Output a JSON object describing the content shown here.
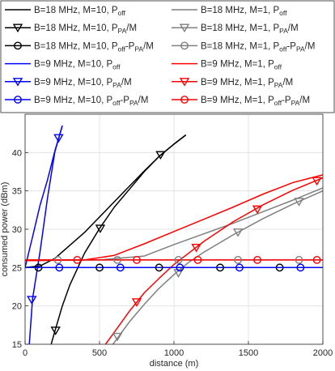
{
  "chart_data": {
    "type": "line",
    "xlabel": "distance (m)",
    "ylabel": "consumed power (dBm)",
    "xlim": [
      0,
      2000
    ],
    "ylim": [
      15,
      45
    ],
    "xticks": [
      0,
      500,
      1000,
      1500,
      2000
    ],
    "yticks": [
      15,
      20,
      25,
      30,
      35,
      40
    ],
    "grid": true,
    "legend_placement": "top, above plot (two columns)",
    "legend": [
      {
        "id": "s1",
        "main": "B=18 MHz, M=10, P",
        "sub": "off",
        "rest": ""
      },
      {
        "id": "s2",
        "main": "B=18 MHz, M=1, P",
        "sub": "off",
        "rest": ""
      },
      {
        "id": "s3",
        "main": "B=18 MHz, M=10, P",
        "sub": "PA",
        "rest": "/M"
      },
      {
        "id": "s4",
        "main": "B=18 MHz, M=1, P",
        "sub": "PA",
        "rest": "/M"
      },
      {
        "id": "s5",
        "main": "B=18 MHz, M=10, P",
        "sub": "off",
        "mid": "-P",
        "sub2": "PA",
        "rest": "/M"
      },
      {
        "id": "s6",
        "main": "B=18 MHz, M=1, P",
        "sub": "off",
        "mid": "-P",
        "sub2": "PA",
        "rest": "/M"
      },
      {
        "id": "s7",
        "main": "B=9 MHz, M=10, P",
        "sub": "off",
        "rest": ""
      },
      {
        "id": "s8",
        "main": "B=9 MHz, M=1, P",
        "sub": "off",
        "rest": ""
      },
      {
        "id": "s9",
        "main": "B=9 MHz, M=10, P",
        "sub": "PA",
        "rest": "/M"
      },
      {
        "id": "s10",
        "main": "B=9 MHz, M=1, P",
        "sub": "PA",
        "rest": "/M"
      },
      {
        "id": "s11",
        "main": "B=9 MHz, M=10, P",
        "sub": "off",
        "mid": "-P",
        "sub2": "PA",
        "rest": "/M"
      },
      {
        "id": "s12",
        "main": "B=9 MHz, M=1, P",
        "sub": "off",
        "mid": "-P",
        "sub2": "PA",
        "rest": "/M"
      }
    ],
    "series": [
      {
        "id": "s1",
        "color": "#000000",
        "marker": "none",
        "x": [
          0,
          100,
          200,
          300,
          400,
          500,
          600,
          700,
          800,
          900,
          1000,
          1080
        ],
        "y": [
          25.0,
          25.2,
          26.2,
          27.9,
          29.6,
          31.6,
          33.6,
          35.6,
          37.6,
          39.5,
          41.1,
          42.3
        ]
      },
      {
        "id": "s2",
        "color": "#7f7f7f",
        "marker": "none",
        "x": [
          0,
          500,
          800,
          1000,
          1200,
          1400,
          1600,
          1800,
          2000
        ],
        "y": [
          25.9,
          26.0,
          26.5,
          28.0,
          29.4,
          30.8,
          32.3,
          33.8,
          35.4
        ]
      },
      {
        "id": "s3",
        "color": "#000000",
        "marker": "triangle-down",
        "x": [
          175,
          200,
          250,
          300,
          400,
          500,
          600,
          700,
          800,
          900,
          1000,
          1080
        ],
        "y": [
          15.0,
          16.7,
          20.0,
          22.7,
          26.9,
          30.1,
          32.9,
          35.2,
          37.5,
          39.5,
          41.1,
          42.3
        ],
        "marker_x": [
          205,
          505,
          910
        ],
        "marker_y": [
          16.8,
          30.1,
          39.7
        ]
      },
      {
        "id": "s4",
        "color": "#7f7f7f",
        "marker": "triangle-down",
        "x": [
          590,
          700,
          800,
          900,
          1000,
          1100,
          1200,
          1400,
          1600,
          1800,
          2000
        ],
        "y": [
          15.0,
          17.9,
          20.2,
          22.3,
          24.1,
          25.7,
          27.0,
          29.3,
          31.4,
          33.3,
          35.0
        ],
        "marker_x": [
          620,
          1030,
          1430,
          1840
        ],
        "marker_y": [
          16.0,
          24.3,
          29.6,
          33.6
        ]
      },
      {
        "id": "s5",
        "color": "#000000",
        "marker": "circle",
        "x": [
          0,
          2000
        ],
        "y": [
          25.0,
          25.0
        ],
        "marker_x": [
          90,
          500,
          900,
          1310,
          1710
        ],
        "marker_y": [
          25.0,
          25.0,
          25.0,
          25.0,
          25.0
        ]
      },
      {
        "id": "s6",
        "color": "#7f7f7f",
        "marker": "circle",
        "x": [
          0,
          2000
        ],
        "y": [
          26.0,
          26.0
        ],
        "marker_x": [
          220,
          620,
          1030,
          1430,
          1840
        ],
        "marker_y": [
          26.0,
          26.0,
          26.0,
          26.0,
          26.0
        ]
      },
      {
        "id": "s7",
        "color": "#0000ff",
        "marker": "none",
        "x": [
          0,
          50,
          100,
          150,
          200,
          250
        ],
        "y": [
          25.0,
          29.0,
          33.1,
          36.4,
          40.2,
          43.5
        ]
      },
      {
        "id": "s8",
        "color": "#ff0000",
        "marker": "none",
        "x": [
          0,
          400,
          600,
          800,
          1000,
          1200,
          1400,
          1600,
          1800,
          2000
        ],
        "y": [
          25.9,
          26.0,
          26.6,
          28.1,
          29.7,
          31.3,
          32.9,
          34.6,
          36.1,
          37.1
        ]
      },
      {
        "id": "s9",
        "color": "#0000ff",
        "marker": "triangle-down",
        "x": [
          28,
          50,
          100,
          150,
          200,
          250
        ],
        "y": [
          15.0,
          20.9,
          27.0,
          34.0,
          40.1,
          43.5
        ],
        "marker_x": [
          45,
          225
        ],
        "marker_y": [
          20.8,
          41.9
        ]
      },
      {
        "id": "s10",
        "color": "#ff0000",
        "marker": "triangle-down",
        "x": [
          540,
          600,
          700,
          800,
          900,
          1000,
          1100,
          1200,
          1400,
          1600,
          1800,
          2000
        ],
        "y": [
          15.0,
          16.6,
          19.3,
          21.7,
          23.6,
          25.4,
          26.9,
          28.4,
          31.0,
          33.2,
          35.1,
          36.7
        ],
        "marker_x": [
          750,
          1150,
          1560,
          1960
        ],
        "marker_y": [
          20.5,
          27.6,
          32.6,
          36.3
        ]
      },
      {
        "id": "s11",
        "color": "#0000ff",
        "marker": "circle",
        "x": [
          0,
          2000
        ],
        "y": [
          25.0,
          25.0
        ],
        "marker_x": [
          230,
          640,
          1040,
          1440,
          1850
        ],
        "marker_y": [
          25.0,
          25.0,
          25.0,
          25.0,
          25.0
        ]
      },
      {
        "id": "s12",
        "color": "#ff0000",
        "marker": "circle",
        "x": [
          0,
          2000
        ],
        "y": [
          26.0,
          26.0
        ],
        "marker_x": [
          350,
          750,
          1160,
          1560,
          1960
        ],
        "marker_y": [
          26.0,
          26.0,
          26.0,
          26.0,
          26.0
        ]
      }
    ]
  }
}
